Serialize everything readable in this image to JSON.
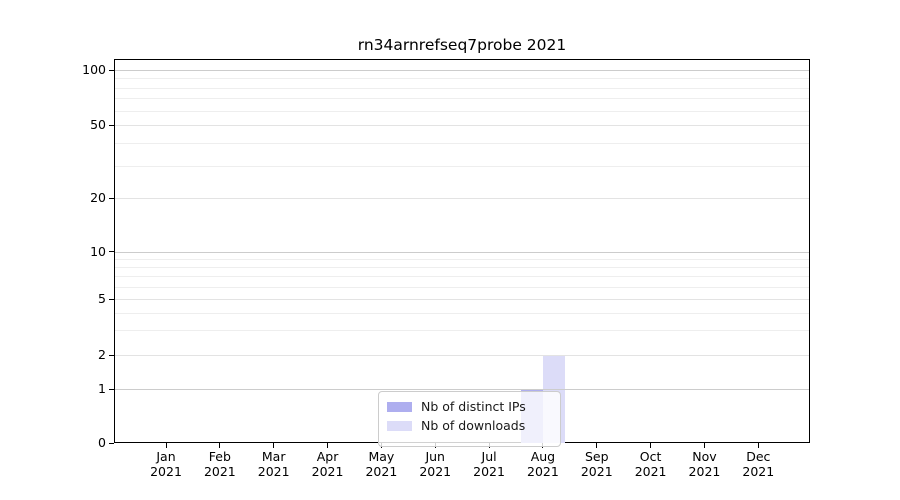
{
  "chart_data": {
    "type": "bar",
    "title": "rn34arnrefseq7probe 2021",
    "categories": [
      "Jan",
      "Feb",
      "Mar",
      "Apr",
      "May",
      "Jun",
      "Jul",
      "Aug",
      "Sep",
      "Oct",
      "Nov",
      "Dec"
    ],
    "category_year_line": "2021",
    "series": [
      {
        "name": "Nb of distinct IPs",
        "color": "#aeaeef",
        "values": [
          0,
          0,
          0,
          0,
          0,
          0,
          0,
          1,
          0,
          0,
          0,
          0
        ]
      },
      {
        "name": "Nb of downloads",
        "color": "#dcdcf8",
        "values": [
          0,
          0,
          0,
          0,
          0,
          0,
          0,
          2,
          0,
          0,
          0,
          0
        ]
      }
    ],
    "yscale": "symlog",
    "yticks": [
      0,
      1,
      2,
      5,
      10,
      20,
      50,
      100
    ],
    "ytick_labels": [
      "0",
      "1",
      "2",
      "5",
      "10",
      "20",
      "50",
      "100"
    ],
    "major_gridlines": [
      1,
      10,
      100
    ],
    "labeled_gridlines": [
      2,
      5,
      20,
      50
    ],
    "minor_gridlines": [
      3,
      4,
      6,
      7,
      8,
      9,
      30,
      40,
      60,
      70,
      80,
      90
    ],
    "ylim": [
      0,
      113
    ],
    "grid": true,
    "legend_position": "lower center inside axes",
    "colors": {
      "bar_distinct_ips": "#aeaeef",
      "bar_downloads": "#dcdcf8",
      "grid_major": "#cccccc",
      "grid_minor": "#eeeeee",
      "spine": "#000000"
    }
  }
}
